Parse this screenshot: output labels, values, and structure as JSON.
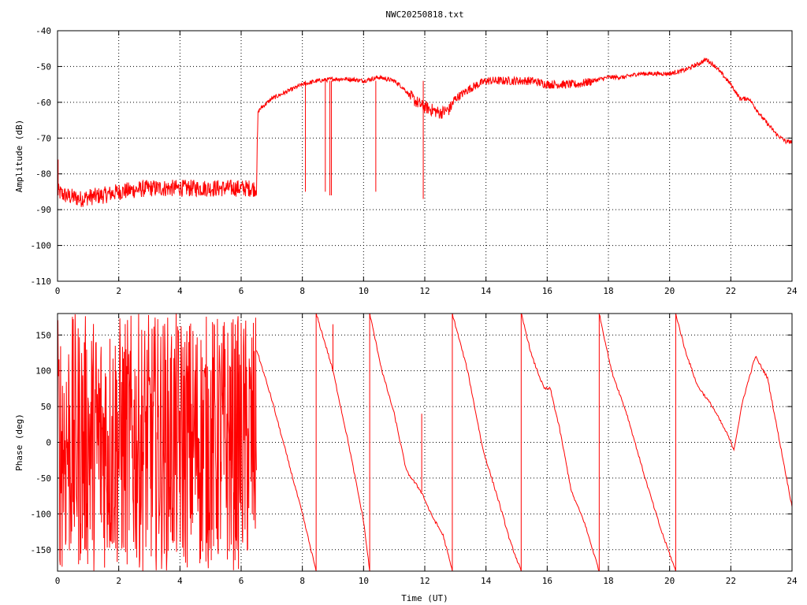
{
  "chart_data": {
    "title": "NWC20250818.txt",
    "colors": {
      "trace": "#ff0000",
      "axis": "#000000",
      "background": "#ffffff"
    },
    "grid": true,
    "panels": [
      {
        "id": "amplitude",
        "type": "line",
        "ylabel": "Amplitude (dB)",
        "xlabel": "",
        "xlim": [
          0,
          24
        ],
        "ylim": [
          -110,
          -40
        ],
        "xticks": [
          0,
          2,
          4,
          6,
          8,
          10,
          12,
          14,
          16,
          18,
          20,
          22,
          24
        ],
        "yticks": [
          -40,
          -50,
          -60,
          -70,
          -80,
          -90,
          -100,
          -110
        ],
        "ytick_labels": [
          "-40",
          "-50",
          "-60",
          "-70",
          "-80",
          "-90",
          "-100",
          "-110"
        ],
        "series": [
          {
            "x": [
              0,
              0.25,
              0.5,
              0.75,
              1.0,
              1.5,
              2.0,
              2.5,
              3.0,
              3.5,
              4.0,
              4.5,
              5.0,
              5.5,
              6.0,
              6.4,
              6.5,
              6.55,
              6.6,
              7.0,
              7.5,
              8.0,
              8.5,
              9.0,
              9.5,
              10.0,
              10.5,
              11.0,
              11.3,
              11.6,
              11.9,
              12.2,
              12.5,
              12.8,
              13.0,
              13.5,
              14.0,
              14.5,
              15.0,
              15.5,
              16.0,
              16.5,
              17.0,
              17.5,
              18.0,
              18.5,
              19.0,
              19.5,
              20.0,
              20.5,
              21.0,
              21.2,
              21.5,
              22.0,
              22.3,
              22.6,
              23.0,
              23.5,
              23.8,
              24.0
            ],
            "y": [
              -85,
              -86,
              -86.5,
              -87,
              -86.5,
              -86,
              -85,
              -84.5,
              -84,
              -84,
              -84,
              -84,
              -84,
              -84,
              -84,
              -84,
              -84,
              -63,
              -62,
              -59,
              -57,
              -55,
              -54,
              -53.5,
              -53.5,
              -54,
              -53,
              -54,
              -56,
              -59,
              -61,
              -62,
              -63,
              -62,
              -59,
              -56,
              -54,
              -54,
              -54,
              -54,
              -55,
              -55,
              -55,
              -54,
              -53,
              -53,
              -52,
              -52,
              -52,
              -51,
              -49,
              -48,
              -50,
              -55,
              -59,
              -59,
              -64,
              -69,
              -71,
              -71
            ]
          }
        ],
        "spikes": [
          {
            "x": 8.1,
            "y": -85
          },
          {
            "x": 8.75,
            "y": -85
          },
          {
            "x": 8.9,
            "y": -86
          },
          {
            "x": 8.95,
            "y": -86
          },
          {
            "x": 10.4,
            "y": -85
          },
          {
            "x": 11.95,
            "y": -87
          }
        ]
      },
      {
        "id": "phase",
        "type": "line",
        "ylabel": "Phase (deg)",
        "xlabel": "Time (UT)",
        "xlim": [
          0,
          24
        ],
        "ylim": [
          -180,
          180
        ],
        "xticks": [
          0,
          2,
          4,
          6,
          8,
          10,
          12,
          14,
          16,
          18,
          20,
          22,
          24
        ],
        "yticks": [
          150,
          100,
          50,
          0,
          -50,
          -100,
          -150
        ],
        "ytick_labels": [
          "150",
          "100",
          "50",
          "0",
          "-50",
          "-100",
          "-150"
        ],
        "noise_region": {
          "x_start": 0,
          "x_end": 6.5,
          "y_min": -180,
          "y_max": 180
        },
        "series": [
          {
            "x": [
              6.5,
              7.0,
              7.5,
              8.0,
              8.45
            ],
            "y": [
              130,
              60,
              -20,
              -100,
              -180
            ]
          },
          {
            "x": [
              8.45,
              8.8,
              9.0,
              9.5,
              10.0,
              10.2
            ],
            "y": [
              180,
              130,
              100,
              0,
              -110,
              -180
            ]
          },
          {
            "x": [
              10.2,
              10.6,
              11.0,
              11.4,
              11.9,
              12.2,
              12.6,
              12.9
            ],
            "y": [
              180,
              100,
              40,
              -40,
              -70,
              -100,
              -130,
              -180
            ]
          },
          {
            "x": [
              12.9,
              13.4,
              13.9,
              14.4,
              14.8,
              15.15
            ],
            "y": [
              180,
              100,
              -10,
              -80,
              -140,
              -180
            ]
          },
          {
            "x": [
              15.15,
              15.5,
              15.9,
              16.1,
              16.4,
              16.8,
              17.2,
              17.7
            ],
            "y": [
              180,
              120,
              75,
              75,
              20,
              -70,
              -110,
              -180
            ]
          },
          {
            "x": [
              17.7,
              18.1,
              18.6,
              19.2,
              19.7,
              20.2
            ],
            "y": [
              180,
              100,
              40,
              -50,
              -120,
              -180
            ]
          },
          {
            "x": [
              20.2,
              20.5,
              20.9,
              21.4,
              21.9,
              22.1,
              22.4,
              22.8,
              23.2,
              23.6,
              24.0
            ],
            "y": [
              180,
              130,
              80,
              50,
              10,
              -10,
              60,
              120,
              90,
              0,
              -90
            ]
          }
        ],
        "wraps": [
          8.45,
          10.2,
          12.9,
          15.15,
          17.7,
          20.2
        ]
      }
    ]
  }
}
